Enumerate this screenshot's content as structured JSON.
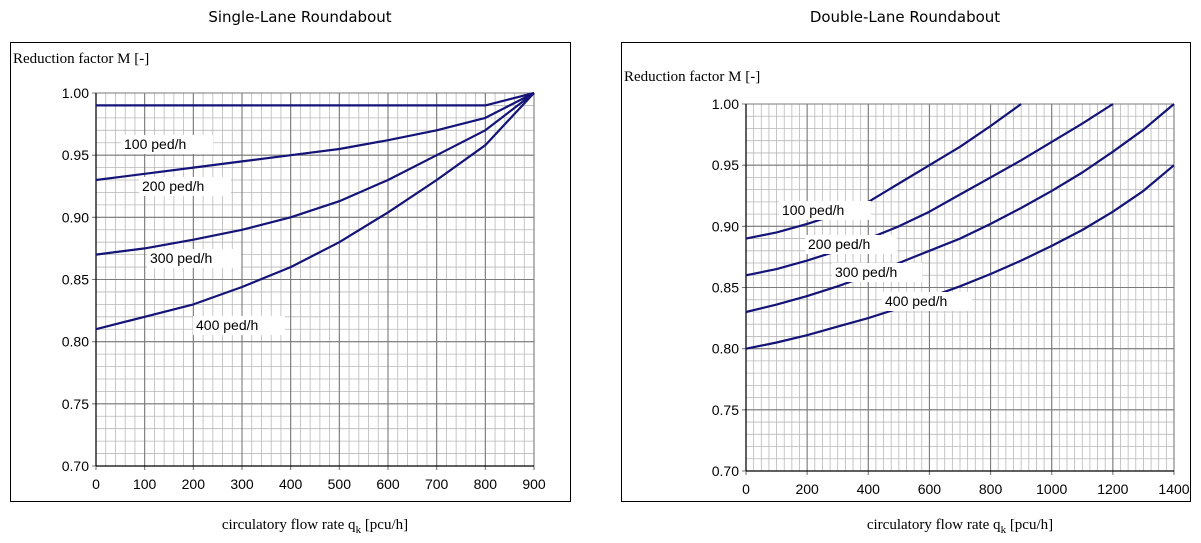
{
  "chart_data": [
    {
      "type": "line",
      "title": "Single-Lane Roundabout",
      "ylabel": "Reduction factor M [-]",
      "xlabel_main": "circulatory flow rate q",
      "xlabel_sub": "k",
      "xlabel_tail": " [pcu/h]",
      "xlim": [
        0,
        900
      ],
      "ylim": [
        0.7,
        1.0
      ],
      "xticks": [
        "0",
        "100",
        "200",
        "300",
        "400",
        "500",
        "600",
        "700",
        "800",
        "900"
      ],
      "yticks": [
        "0.70",
        "0.75",
        "0.80",
        "0.85",
        "0.90",
        "0.95",
        "1.00"
      ],
      "grid": true,
      "series": [
        {
          "name": "100 ped/h",
          "x": [
            0,
            100,
            200,
            300,
            400,
            500,
            600,
            700,
            800,
            900
          ],
          "values": [
            0.99,
            0.99,
            0.99,
            0.99,
            0.99,
            0.99,
            0.99,
            0.99,
            0.99,
            1.0
          ]
        },
        {
          "name": "200 ped/h",
          "x": [
            0,
            100,
            200,
            300,
            400,
            500,
            600,
            700,
            800,
            900
          ],
          "values": [
            0.93,
            0.935,
            0.94,
            0.945,
            0.95,
            0.955,
            0.962,
            0.97,
            0.98,
            1.0
          ]
        },
        {
          "name": "300 ped/h",
          "x": [
            0,
            100,
            200,
            300,
            400,
            500,
            600,
            700,
            800,
            900
          ],
          "values": [
            0.87,
            0.875,
            0.882,
            0.89,
            0.9,
            0.913,
            0.93,
            0.95,
            0.97,
            1.0
          ]
        },
        {
          "name": "400 ped/h",
          "x": [
            0,
            100,
            200,
            300,
            400,
            500,
            600,
            700,
            800,
            900
          ],
          "values": [
            0.81,
            0.82,
            0.83,
            0.844,
            0.86,
            0.88,
            0.904,
            0.93,
            0.958,
            1.0
          ]
        }
      ]
    },
    {
      "type": "line",
      "title": "Double-Lane Roundabout",
      "ylabel": "Reduction factor M [-]",
      "xlabel_main": "circulatory flow rate q",
      "xlabel_sub": "k",
      "xlabel_tail": " [pcu/h]",
      "xlim": [
        0,
        1400
      ],
      "ylim": [
        0.7,
        1.0
      ],
      "xticks": [
        "0",
        "200",
        "400",
        "600",
        "800",
        "1000",
        "1200",
        "1400"
      ],
      "yticks": [
        "0.70",
        "0.75",
        "0.80",
        "0.85",
        "0.90",
        "0.95",
        "1.00"
      ],
      "grid": true,
      "series": [
        {
          "name": "100 ped/h",
          "x": [
            0,
            100,
            200,
            300,
            400,
            500,
            600,
            700,
            800,
            900
          ],
          "values": [
            0.89,
            0.895,
            0.902,
            0.91,
            0.92,
            0.935,
            0.95,
            0.965,
            0.982,
            1.0
          ]
        },
        {
          "name": "200 ped/h",
          "x": [
            0,
            100,
            200,
            300,
            400,
            500,
            600,
            700,
            800,
            900,
            1000,
            1100,
            1200
          ],
          "values": [
            0.86,
            0.865,
            0.872,
            0.88,
            0.89,
            0.9,
            0.912,
            0.926,
            0.94,
            0.954,
            0.969,
            0.984,
            1.0
          ]
        },
        {
          "name": "300 ped/h",
          "x": [
            0,
            100,
            200,
            300,
            400,
            500,
            600,
            700,
            800,
            900,
            1000,
            1100,
            1200,
            1300,
            1400
          ],
          "values": [
            0.83,
            0.836,
            0.843,
            0.851,
            0.86,
            0.87,
            0.88,
            0.89,
            0.902,
            0.915,
            0.929,
            0.944,
            0.961,
            0.979,
            1.0
          ]
        },
        {
          "name": "400 ped/h",
          "x": [
            0,
            100,
            200,
            300,
            400,
            500,
            600,
            700,
            800,
            900,
            1000,
            1100,
            1200,
            1300,
            1400
          ],
          "values": [
            0.8,
            0.805,
            0.811,
            0.818,
            0.825,
            0.833,
            0.842,
            0.851,
            0.861,
            0.872,
            0.884,
            0.897,
            0.912,
            0.929,
            0.95
          ]
        }
      ]
    }
  ],
  "style": {
    "line_color": "#141478",
    "grid_minor": "#b9b9b9",
    "grid_major": "#7a7a7a"
  }
}
